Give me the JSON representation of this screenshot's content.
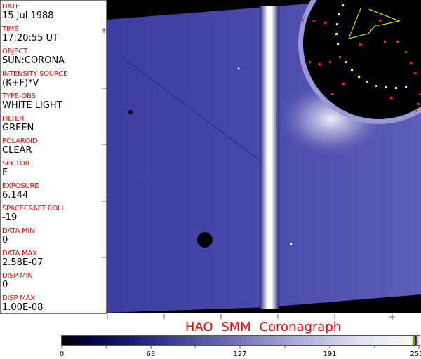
{
  "info_panel": {
    "fields": [
      {
        "label": "DATE",
        "value": "15 Jul 1988"
      },
      {
        "label": "TIME",
        "value": "17:20:55 UT"
      },
      {
        "label": "OBJECT",
        "value": "SUN:CORONA"
      },
      {
        "label": "INTENSITY SOURCE",
        "value": "(K+F)*V"
      },
      {
        "label": "TYPE-OBS",
        "value": "WHITE LIGHT"
      },
      {
        "label": "FILTER",
        "value": "GREEN"
      },
      {
        "label": "POLAROID",
        "value": "CLEAR"
      },
      {
        "label": "SECTOR",
        "value": "E"
      },
      {
        "label": "EXPOSURE",
        "value": "6.144"
      },
      {
        "label": "SPACECRAFT ROLL",
        "value": "-19"
      },
      {
        "label": "DATA MIN",
        "value": "0"
      },
      {
        "label": "DATA MAX",
        "value": "2.58E-07"
      },
      {
        "label": "DISP MIN",
        "value": "0"
      },
      {
        "label": "DISP MAX",
        "value": "1.00E-08"
      }
    ]
  },
  "image": {
    "description_colors": {
      "field": "#3a3a9a",
      "occulter": "#000000",
      "marker_red": "#ff2020",
      "marker_yellow": "#ffff00"
    }
  },
  "title": "HAO  SMM Coronagraph",
  "colorbar": {
    "ticks": [
      "0",
      "63",
      "127",
      "191",
      "255"
    ],
    "end_colors": [
      "#ffff00",
      "#00cc00",
      "#0000ff",
      "#ff0000"
    ]
  }
}
